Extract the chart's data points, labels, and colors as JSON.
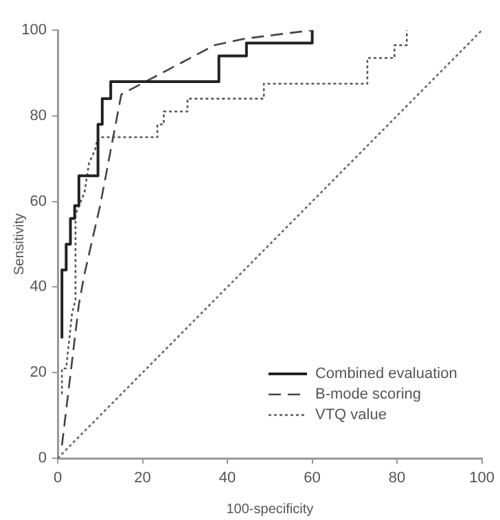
{
  "chart_data": {
    "type": "line",
    "xlabel": "100-specificity",
    "ylabel": "Sensitivity",
    "xlim": [
      0,
      100
    ],
    "xticks": [
      0,
      20,
      40,
      60,
      80,
      100
    ],
    "ylim": [
      0,
      100
    ],
    "yticks": [
      0,
      20,
      40,
      60,
      80,
      100
    ],
    "grid": false,
    "legend": "bottom right",
    "marker": "none",
    "series": [
      {
        "name": "Combined evaluation",
        "color": "#222222",
        "line_style": "solid",
        "x": [
          1,
          1,
          2,
          2,
          3,
          3,
          4,
          4,
          5,
          5,
          9.5,
          9.5,
          10.5,
          10.5,
          12.5,
          12.5,
          38,
          38,
          44.5,
          44.5,
          60,
          60
        ],
        "values": [
          28,
          44,
          44,
          50,
          50,
          56,
          56,
          59,
          59,
          66,
          66,
          78,
          78,
          84,
          84,
          88,
          88,
          94,
          94,
          97,
          97,
          100
        ]
      },
      {
        "name": "B-mode scoring",
        "color": "#444444",
        "line_style": "dashed",
        "x": [
          1,
          5,
          6.3,
          10,
          15,
          37,
          44,
          60
        ],
        "values": [
          3,
          36,
          43,
          59,
          85,
          96.5,
          98,
          100
        ]
      },
      {
        "name": "VTQ value",
        "color": "#555555",
        "line_style": "dotted",
        "x": [
          1,
          1,
          2,
          3.4,
          4.2,
          4.2,
          6.3,
          7.4,
          8.8,
          9.5,
          23.5,
          23.5,
          25,
          25,
          30.6,
          30.6,
          48.6,
          48.6,
          73,
          73,
          79.4,
          79.4,
          82.3,
          82.3
        ],
        "values": [
          15,
          21,
          21,
          34,
          37,
          57,
          62,
          69,
          72,
          75,
          75,
          78,
          78,
          81,
          81,
          84,
          84,
          87.5,
          87.5,
          93.5,
          93.5,
          96.5,
          96.5,
          100
        ]
      },
      {
        "color": "#666666",
        "line_style": "dotted",
        "x": [
          0,
          100
        ],
        "values": [
          0,
          100
        ]
      }
    ]
  }
}
